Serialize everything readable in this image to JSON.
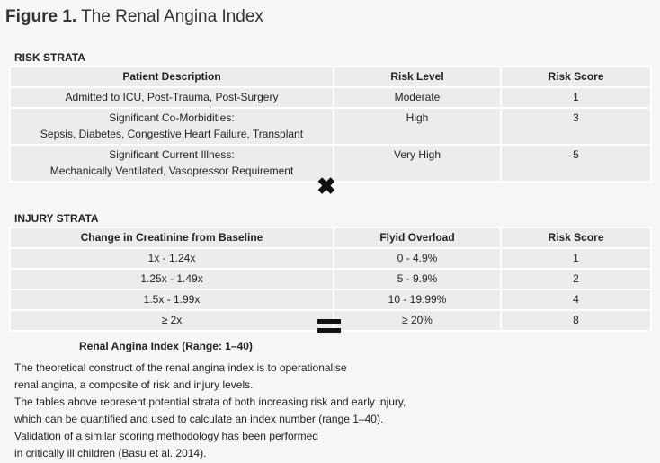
{
  "figure": {
    "label": "Figure 1.",
    "title": "The Renal Angina Index"
  },
  "risk_strata": {
    "heading": "RISK STRATA",
    "columns": [
      "Patient Description",
      "Risk Level",
      "Risk Score"
    ],
    "rows": [
      [
        [
          "Admitted to ICU, Post-Trauma, Post-Surgery"
        ],
        "Moderate",
        1
      ],
      [
        [
          "Significant Co-Morbidities:",
          "Sepsis, Diabetes, Congestive Heart Failure, Transplant"
        ],
        "High",
        3
      ],
      [
        [
          "Significant Current Illness:",
          "Mechanically Ventilated, Vasopressor Requirement"
        ],
        "Very High",
        5
      ]
    ]
  },
  "injury_strata": {
    "heading": "INJURY STRATA",
    "columns": [
      "Change in Creatinine from Baseline",
      "Flyid Overload",
      "Risk Score"
    ],
    "rows": [
      [
        [
          "1x - 1.24x"
        ],
        "0 - 4.9%",
        1
      ],
      [
        [
          "1.25x - 1.49x"
        ],
        "5 - 9.9%",
        2
      ],
      [
        [
          "1.5x - 1.99x"
        ],
        "10 - 19.99%",
        4
      ],
      [
        [
          "≥ 2x"
        ],
        "≥ 20%",
        8
      ]
    ]
  },
  "summary": {
    "heading": "Renal Angina Index (Range: 1–40)",
    "lines": [
      "The theoretical construct of the renal angina index is to operationalise",
      "renal angina, a composite of risk and injury levels.",
      "The tables above represent potential strata of both increasing risk and early injury,",
      "which can be quantified and used to calculate an index number (range 1–40).",
      "Validation of a similar scoring methodology has been performed",
      "in critically ill children (Basu et al. 2014)."
    ]
  }
}
